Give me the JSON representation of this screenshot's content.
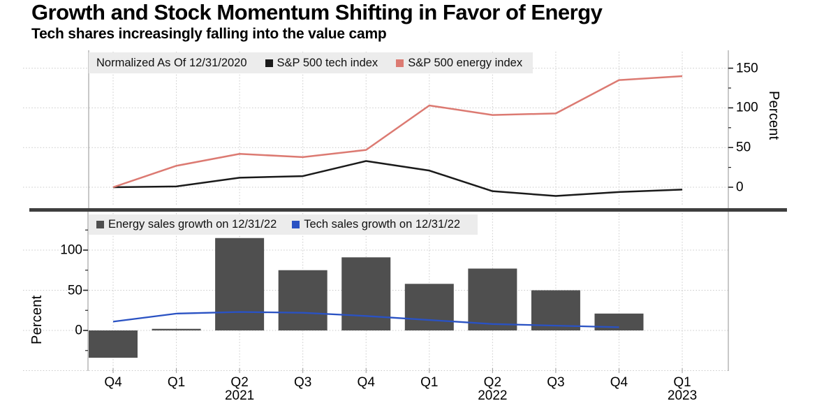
{
  "header": {
    "title": "Growth and Stock Momentum Shifting in Favor of Energy",
    "subtitle": "Tech shares increasingly falling into the value camp"
  },
  "colors": {
    "tech_index_line": "#1a1a1a",
    "energy_index_line": "#dc7a72",
    "energy_bar": "#4f4f4f",
    "tech_sales_line": "#2a52c3",
    "legend_background": "#ececec",
    "separator": "#3e3e3e",
    "gridline": "#c9c9c9",
    "frame": "#909090"
  },
  "top_panel": {
    "legend_note": "Normalized As Of 12/31/2020",
    "y_axis_label": "Percent",
    "y_tick_labels": [
      "0",
      "50",
      "100",
      "150"
    ]
  },
  "bottom_panel": {
    "y_axis_label": "Percent",
    "y_tick_labels": [
      "0",
      "50",
      "100"
    ]
  },
  "x_axis": {
    "labels": [
      "Q4",
      "Q1",
      "Q2",
      "Q3",
      "Q4",
      "Q1",
      "Q2",
      "Q3",
      "Q4",
      "Q1"
    ],
    "years": [
      {
        "label": "2021",
        "index": 2
      },
      {
        "label": "2022",
        "index": 6
      },
      {
        "label": "2023",
        "index": 9
      }
    ]
  },
  "chart_data": [
    {
      "type": "line",
      "panel": "top",
      "title": "Normalized As Of 12/31/2020",
      "x": [
        "Q4 2020",
        "Q1 2021",
        "Q2 2021",
        "Q3 2021",
        "Q4 2021",
        "Q1 2022",
        "Q2 2022",
        "Q3 2022",
        "Q4 2022",
        "Q1 2023"
      ],
      "series": [
        {
          "name": "S&P 500 tech index",
          "color": "#1a1a1a",
          "values": [
            0,
            1,
            12,
            14,
            33,
            21,
            -5,
            -11,
            -6,
            -3
          ]
        },
        {
          "name": "S&P 500 energy index",
          "color": "#dc7a72",
          "values": [
            0,
            27,
            42,
            38,
            47,
            103,
            91,
            93,
            135,
            140
          ]
        }
      ],
      "ylabel": "Percent",
      "yticks": [
        0,
        50,
        100,
        150
      ],
      "grid_ticks": [
        0,
        50,
        100,
        150
      ],
      "minor_ticks": [
        25,
        75,
        125
      ],
      "ylim": [
        -25,
        172
      ],
      "grid": true,
      "legend_position": "top-left"
    },
    {
      "type": "bar",
      "panel": "bottom",
      "x": [
        "Q4 2020",
        "Q1 2021",
        "Q2 2021",
        "Q3 2021",
        "Q4 2021",
        "Q1 2022",
        "Q2 2022",
        "Q3 2022",
        "Q4 2022",
        "Q1 2023"
      ],
      "series": [
        {
          "name": "Energy sales growth on 12/31/22",
          "render": "bar",
          "color": "#4f4f4f",
          "values": [
            -34,
            2,
            115,
            75,
            91,
            58,
            77,
            50,
            21,
            null
          ]
        },
        {
          "name": "Tech sales growth on 12/31/22",
          "render": "line",
          "color": "#2a52c3",
          "values": [
            11,
            21,
            23,
            22,
            18,
            13,
            8,
            6,
            4,
            null
          ]
        }
      ],
      "ylabel": "Percent",
      "yticks": [
        0,
        50,
        100
      ],
      "grid_ticks": [
        -50,
        0,
        50,
        100
      ],
      "minor_ticks": [
        -25,
        25,
        75,
        125
      ],
      "ylim": [
        -55,
        146
      ],
      "grid": true,
      "legend_position": "top-left"
    }
  ]
}
